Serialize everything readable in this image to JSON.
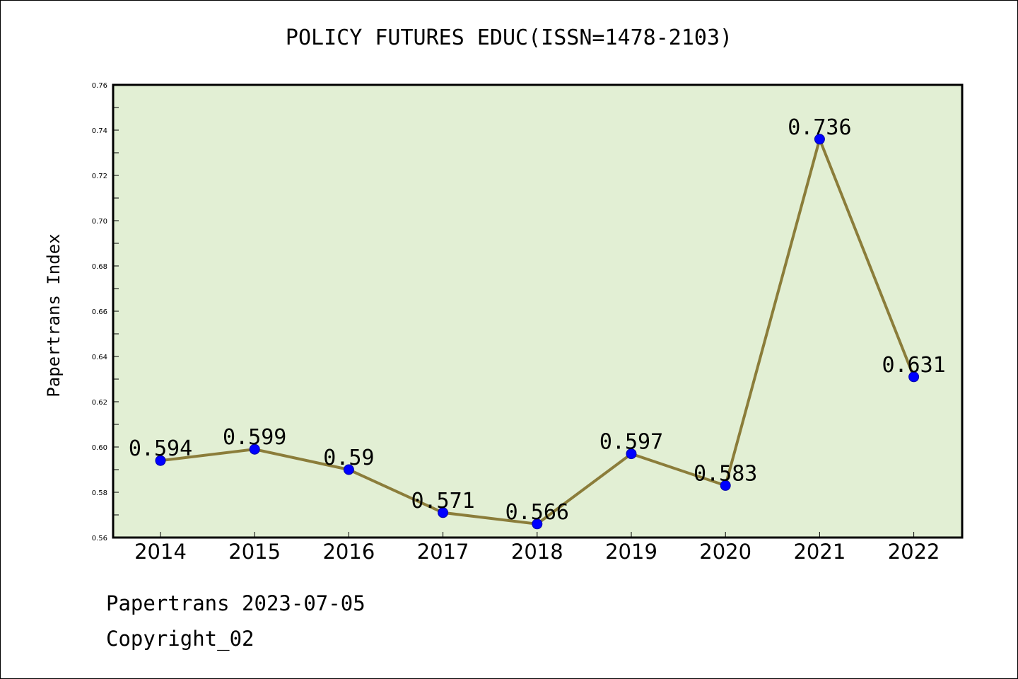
{
  "title": "POLICY FUTURES EDUC(ISSN=1478-2103)",
  "footer": {
    "line1": "Papertrans 2023-07-05",
    "line2": "Copyright_02"
  },
  "colors": {
    "plot_background": "#e2efd4",
    "line": "#8b7d3a",
    "marker": "#0000ff",
    "axis": "#000000"
  },
  "chart_data": {
    "type": "line",
    "title": "POLICY FUTURES EDUC(ISSN=1478-2103)",
    "xlabel": "",
    "ylabel": "Papertrans Index",
    "categories": [
      "2014",
      "2015",
      "2016",
      "2017",
      "2018",
      "2019",
      "2020",
      "2021",
      "2022"
    ],
    "series": [
      {
        "values": [
          0.594,
          0.599,
          0.59,
          0.571,
          0.566,
          0.597,
          0.583,
          0.736,
          0.631
        ],
        "labels": [
          "0.594",
          "0.599",
          "0.59",
          "0.571",
          "0.566",
          "0.597",
          "0.583",
          "0.736",
          "0.631"
        ]
      }
    ],
    "ylim": [
      0.56,
      0.76
    ],
    "yticks": [
      "0.56",
      "0.58",
      "0.60",
      "0.62",
      "0.64",
      "0.66",
      "0.68",
      "0.70",
      "0.72",
      "0.74",
      "0.76"
    ],
    "grid": false,
    "legend": "none"
  }
}
